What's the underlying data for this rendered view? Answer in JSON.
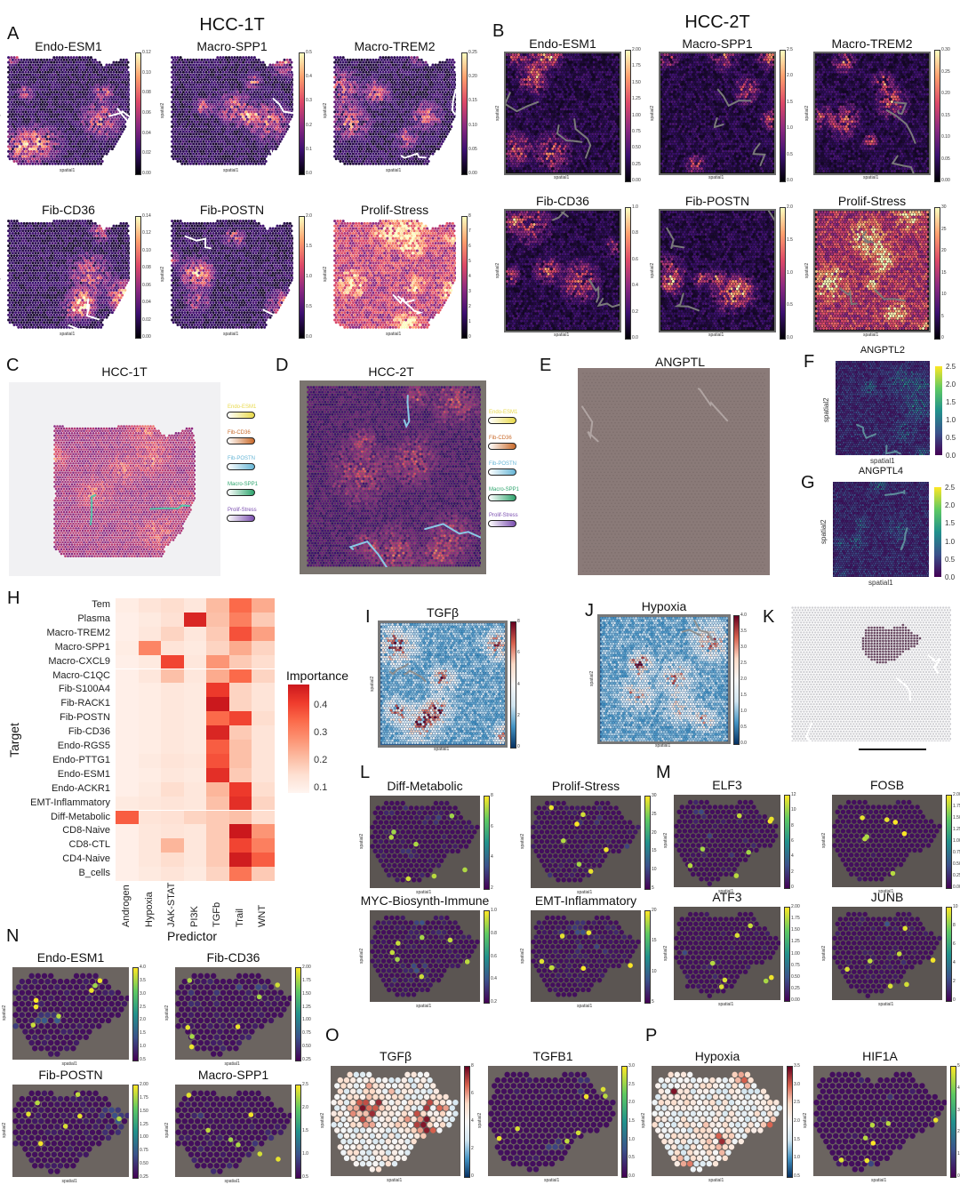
{
  "panels": {
    "A": {
      "letter": "A",
      "title": "HCC-1T",
      "plots": [
        {
          "title": "Endo-ESM1",
          "ticks": [
            "0.12",
            "0.10",
            "0.08",
            "0.06",
            "0.04",
            "0.02",
            "0.00"
          ],
          "cmap": "magma",
          "tissue": 1,
          "bg": "dots"
        },
        {
          "title": "Macro-SPP1",
          "ticks": [
            "0.5",
            "0.4",
            "0.3",
            "0.2",
            "0.1",
            "0.0"
          ],
          "cmap": "magma",
          "tissue": 1,
          "bg": "dots"
        },
        {
          "title": "Macro-TREM2",
          "ticks": [
            "0.25",
            "0.20",
            "0.15",
            "0.10",
            "0.05",
            "0.00"
          ],
          "cmap": "magma",
          "tissue": 1,
          "bg": "dots"
        },
        {
          "title": "Fib-CD36",
          "ticks": [
            "0.14",
            "0.12",
            "0.10",
            "0.08",
            "0.06",
            "0.04",
            "0.02",
            "0.00"
          ],
          "cmap": "magma",
          "tissue": 1,
          "bg": "dots"
        },
        {
          "title": "Fib-POSTN",
          "ticks": [
            "2.0",
            "1.5",
            "1.0",
            "0.5",
            "0.0"
          ],
          "cmap": "magma",
          "tissue": 1,
          "bg": "dots"
        },
        {
          "title": "Prolif-Stress",
          "ticks": [
            "8",
            "7",
            "6",
            "5",
            "4",
            "3",
            "2",
            "1",
            "0"
          ],
          "cmap": "magma",
          "tissue": 1,
          "bg": "dots",
          "bright": true
        }
      ]
    },
    "B": {
      "letter": "B",
      "title": "HCC-2T",
      "plots": [
        {
          "title": "Endo-ESM1",
          "ticks": [
            "2.00",
            "1.75",
            "1.50",
            "1.25",
            "1.00",
            "0.75",
            "0.50",
            "0.25",
            "0.00"
          ],
          "cmap": "magma",
          "tissue": 2,
          "bg": "dark"
        },
        {
          "title": "Macro-SPP1",
          "ticks": [
            "2.5",
            "2.0",
            "1.5",
            "1.0",
            "0.5",
            "0.0"
          ],
          "cmap": "magma",
          "tissue": 2,
          "bg": "dark"
        },
        {
          "title": "Macro-TREM2",
          "ticks": [
            "0.30",
            "0.25",
            "0.20",
            "0.15",
            "0.10",
            "0.05",
            "0.00"
          ],
          "cmap": "magma",
          "tissue": 2,
          "bg": "dark"
        },
        {
          "title": "Fib-CD36",
          "ticks": [
            "1.0",
            "0.8",
            "0.6",
            "0.4",
            "0.2",
            "0.0"
          ],
          "cmap": "magma",
          "tissue": 2,
          "bg": "dark"
        },
        {
          "title": "Fib-POSTN",
          "ticks": [
            "2.0",
            "1.5",
            "1.0",
            "0.5",
            "0.0"
          ],
          "cmap": "magma",
          "tissue": 2,
          "bg": "dark"
        },
        {
          "title": "Prolif-Stress",
          "ticks": [
            "30",
            "25",
            "20",
            "15",
            "10",
            "5",
            "0"
          ],
          "cmap": "magma",
          "tissue": 2,
          "bg": "dark",
          "bright": true
        }
      ]
    },
    "C": {
      "letter": "C",
      "title": "HCC-1T",
      "legend": [
        "Endo-ESM1",
        "Fib-CD36",
        "Fib-POSTN",
        "Macro-SPP1",
        "Prolif-Stress"
      ]
    },
    "D": {
      "letter": "D",
      "title": "HCC-2T",
      "legend": [
        "Endo-ESM1",
        "Fib-CD36",
        "Fib-POSTN",
        "Macro-SPP1",
        "Prolif-Stress"
      ]
    },
    "E": {
      "letter": "E",
      "title": "ANGPTL"
    },
    "F": {
      "letter": "F",
      "title": "ANGPTL2",
      "ticks": [
        "2.5",
        "2.0",
        "1.5",
        "1.0",
        "0.5",
        "0.0"
      ],
      "xlabel": "spatial1",
      "ylabel": "spatial2"
    },
    "G": {
      "letter": "G",
      "title": "ANGPTL4",
      "ticks": [
        "2.5",
        "2.0",
        "1.5",
        "1.0",
        "0.5",
        "0.0"
      ],
      "xlabel": "spatial1",
      "ylabel": "spatial2"
    },
    "H": {
      "letter": "H",
      "ylabel": "Target",
      "xlabel": "Predictor",
      "cbar_title": "Importance",
      "cbar_ticks": [
        "0.4",
        "0.3",
        "0.2",
        "0.1"
      ]
    },
    "I": {
      "letter": "I",
      "title": "TGFβ",
      "ticks": [
        "8",
        "6",
        "4",
        "2",
        "0"
      ]
    },
    "J": {
      "letter": "J",
      "title": "Hypoxia",
      "ticks": [
        "4.0",
        "3.5",
        "3.0",
        "2.5",
        "2.0",
        "1.5",
        "1.0",
        "0.5",
        "0.0"
      ]
    },
    "K": {
      "letter": "K"
    },
    "L": {
      "letter": "L",
      "plots": [
        {
          "title": "Diff-Metabolic",
          "ticks": [
            "8",
            "6",
            "4",
            "2"
          ]
        },
        {
          "title": "Prolif-Stress",
          "ticks": [
            "30",
            "25",
            "20",
            "15",
            "10",
            "5"
          ]
        },
        {
          "title": "MYC-Biosynth-Immune",
          "ticks": [
            "1.0",
            "0.8",
            "0.6",
            "0.4",
            "0.2"
          ]
        },
        {
          "title": "EMT-Inflammatory",
          "ticks": [
            "20",
            "15",
            "10",
            "5"
          ]
        }
      ]
    },
    "M": {
      "letter": "M",
      "plots": [
        {
          "title": "ELF3",
          "ticks": [
            "12",
            "10",
            "8",
            "6",
            "4",
            "2",
            "0"
          ]
        },
        {
          "title": "FOSB",
          "ticks": [
            "2.00",
            "1.75",
            "1.50",
            "1.25",
            "1.00",
            "0.75",
            "0.50",
            "0.25",
            "0.00"
          ]
        },
        {
          "title": "ATF3",
          "ticks": [
            "2.00",
            "1.75",
            "1.50",
            "1.25",
            "1.00",
            "0.75",
            "0.50",
            "0.25",
            "0.00"
          ]
        },
        {
          "title": "JUNB",
          "ticks": [
            "10",
            "8",
            "6",
            "4",
            "2",
            "0"
          ]
        }
      ]
    },
    "N": {
      "letter": "N",
      "plots": [
        {
          "title": "Endo-ESM1",
          "ticks": [
            "4.0",
            "3.5",
            "3.0",
            "2.5",
            "2.0",
            "1.5",
            "1.0",
            "0.5"
          ]
        },
        {
          "title": "Fib-CD36",
          "ticks": [
            "2.00",
            "1.75",
            "1.50",
            "1.25",
            "1.00",
            "0.75",
            "0.50",
            "0.25"
          ]
        },
        {
          "title": "Fib-POSTN",
          "ticks": [
            "2.00",
            "1.75",
            "1.50",
            "1.25",
            "1.00",
            "0.75",
            "0.50",
            "0.25"
          ]
        },
        {
          "title": "Macro-SPP1",
          "ticks": [
            "2.5",
            "2.0",
            "1.5",
            "1.0",
            "0.5"
          ]
        }
      ]
    },
    "O": {
      "letter": "O",
      "plots": [
        {
          "title": "TGFβ",
          "ticks": [
            "8",
            "6",
            "4",
            "2",
            "0"
          ],
          "cmap": "rdbu"
        },
        {
          "title": "TGFB1",
          "ticks": [
            "3.0",
            "2.5",
            "2.0",
            "1.5",
            "1.0",
            "0.5",
            "0.0"
          ],
          "cmap": "viridis"
        }
      ]
    },
    "P": {
      "letter": "P",
      "plots": [
        {
          "title": "Hypoxia",
          "ticks": [
            "3.5",
            "3.0",
            "2.5",
            "2.0",
            "1.5",
            "1.0",
            "0.5"
          ],
          "cmap": "rdbu"
        },
        {
          "title": "HIF1A",
          "ticks": [
            "5",
            "4",
            "3",
            "2",
            "1",
            "0"
          ],
          "cmap": "viridis"
        }
      ]
    }
  },
  "axis": {
    "x": "spatial1",
    "y": "spatial2"
  },
  "chart_data": {
    "type": "heatmap",
    "title": "",
    "xlabel": "Predictor",
    "ylabel": "Target",
    "colorbar_label": "Importance",
    "colorbar_range": [
      0.0,
      0.45
    ],
    "x": [
      "Androgen",
      "Hypoxia",
      "JAK-STAT",
      "PI3K",
      "TGFb",
      "Trail",
      "WNT"
    ],
    "y": [
      "Tem",
      "Plasma",
      "Macro-TREM2",
      "Macro-SPP1",
      "Macro-CXCL9",
      "Macro-C1QC",
      "Fib-S100A4",
      "Fib-RACK1",
      "Fib-POSTN",
      "Fib-CD36",
      "Endo-RGS5",
      "Endo-PTTG1",
      "Endo-ESM1",
      "Endo-ACKR1",
      "EMT-Inflammatory",
      "Diff-Metabolic",
      "CD8-Naive",
      "CD8-CTL",
      "CD4-Naive",
      "B_cells"
    ],
    "values": [
      [
        0.03,
        0.06,
        0.08,
        0.05,
        0.15,
        0.3,
        0.18
      ],
      [
        0.02,
        0.04,
        0.07,
        0.42,
        0.14,
        0.26,
        0.12
      ],
      [
        0.02,
        0.05,
        0.1,
        0.05,
        0.12,
        0.34,
        0.2
      ],
      [
        0.03,
        0.25,
        0.06,
        0.04,
        0.1,
        0.18,
        0.1
      ],
      [
        0.02,
        0.04,
        0.36,
        0.05,
        0.22,
        0.12,
        0.08
      ],
      [
        0.02,
        0.05,
        0.14,
        0.05,
        0.18,
        0.3,
        0.1
      ],
      [
        0.02,
        0.03,
        0.05,
        0.04,
        0.38,
        0.1,
        0.06
      ],
      [
        0.02,
        0.03,
        0.05,
        0.04,
        0.45,
        0.1,
        0.06
      ],
      [
        0.02,
        0.03,
        0.05,
        0.04,
        0.3,
        0.36,
        0.08
      ],
      [
        0.02,
        0.03,
        0.05,
        0.04,
        0.42,
        0.12,
        0.06
      ],
      [
        0.02,
        0.03,
        0.05,
        0.04,
        0.32,
        0.14,
        0.06
      ],
      [
        0.02,
        0.04,
        0.06,
        0.05,
        0.34,
        0.14,
        0.06
      ],
      [
        0.02,
        0.03,
        0.05,
        0.04,
        0.4,
        0.12,
        0.06
      ],
      [
        0.02,
        0.04,
        0.08,
        0.05,
        0.16,
        0.38,
        0.08
      ],
      [
        0.04,
        0.05,
        0.06,
        0.05,
        0.14,
        0.4,
        0.1
      ],
      [
        0.32,
        0.06,
        0.07,
        0.1,
        0.12,
        0.14,
        0.08
      ],
      [
        0.02,
        0.05,
        0.06,
        0.05,
        0.12,
        0.45,
        0.22
      ],
      [
        0.02,
        0.05,
        0.16,
        0.05,
        0.12,
        0.36,
        0.26
      ],
      [
        0.02,
        0.05,
        0.08,
        0.05,
        0.12,
        0.44,
        0.32
      ],
      [
        0.02,
        0.04,
        0.06,
        0.04,
        0.1,
        0.28,
        0.12
      ]
    ]
  }
}
